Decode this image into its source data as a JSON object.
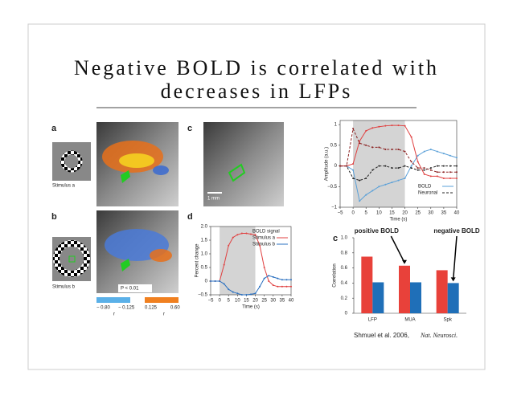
{
  "title": "Negative BOLD is correlated with decreases in LFPs",
  "panel_labels": [
    "a",
    "b",
    "c",
    "d",
    "c"
  ],
  "stimulus_labels": [
    "Stimulus a",
    "Stimulus b"
  ],
  "scale_bar": "1 mm",
  "p_value": "P < 0.01",
  "colorbar": {
    "labels": [
      "− 0.80",
      "− 0.125",
      "0.125",
      "0.60"
    ],
    "unit_labels": [
      "r",
      "r"
    ]
  },
  "chart_c": {
    "type": "line",
    "xlabel": "Time (s)",
    "ylabel": "Amplitude (a.u.)",
    "x": [
      -5,
      -2.5,
      0,
      2.5,
      5,
      7.5,
      10,
      12.5,
      15,
      17.5,
      20,
      22.5,
      25,
      27.5,
      30,
      32.5,
      35,
      37.5,
      40
    ],
    "xlim": [
      -5,
      40
    ],
    "xticks": [
      {
        "value": -5,
        "label": "−5"
      },
      0,
      5,
      10,
      15,
      20,
      25,
      30,
      35,
      40
    ],
    "ylim": [
      -1,
      1.1
    ],
    "yticks": [
      {
        "value": -1,
        "label": "−1"
      },
      {
        "value": -0.5,
        "label": "−0.5"
      },
      0,
      0.5,
      1
    ],
    "span": [
      0,
      20
    ],
    "legend": "lower right",
    "series": [
      {
        "name": "BOLD",
        "color": "#5aa0d8",
        "values": [
          0,
          0,
          -0.1,
          -0.85,
          -0.7,
          -0.6,
          -0.5,
          -0.45,
          -0.4,
          -0.35,
          -0.3,
          0.0,
          0.25,
          0.35,
          0.4,
          0.35,
          0.3,
          0.25,
          0.2
        ]
      },
      {
        "name": "Neuronal",
        "color": "#222222",
        "dashed": true,
        "values": [
          0,
          0,
          -0.3,
          -0.35,
          -0.3,
          -0.1,
          0,
          0,
          -0.05,
          -0.05,
          0,
          -0.05,
          -0.1,
          -0.1,
          -0.05,
          0,
          0,
          0,
          0
        ]
      },
      {
        "color": "#e04040",
        "values": [
          0,
          0,
          0.05,
          0.6,
          0.85,
          0.92,
          0.95,
          0.97,
          0.98,
          0.98,
          0.97,
          0.7,
          0.1,
          -0.2,
          -0.25,
          -0.25,
          -0.3,
          -0.3,
          -0.3
        ]
      },
      {
        "color": "#8a2020",
        "dashed": true,
        "values": [
          0,
          0,
          0.9,
          0.55,
          0.5,
          0.45,
          0.45,
          0.4,
          0.4,
          0.4,
          0.35,
          0.1,
          -0.05,
          -0.05,
          -0.1,
          -0.15,
          -0.15,
          -0.15,
          -0.15
        ]
      }
    ]
  },
  "chart_d": {
    "type": "line",
    "xlabel": "Time (s)",
    "ylabel": "Percent change",
    "x": [
      -5,
      -2.5,
      0,
      2.5,
      5,
      7.5,
      10,
      12.5,
      15,
      17.5,
      20,
      22.5,
      25,
      27.5,
      30,
      32.5,
      35,
      37.5,
      40
    ],
    "xlim": [
      -5,
      40
    ],
    "xticks": [
      {
        "value": -5,
        "label": "−5"
      },
      0,
      5,
      10,
      15,
      20,
      25,
      30,
      35,
      40
    ],
    "ylim": [
      -0.5,
      2.0
    ],
    "yticks": [
      {
        "value": -0.5,
        "label": "−0.5"
      },
      0,
      0.5,
      {
        "value": 1,
        "label": "1.0"
      },
      1.5,
      {
        "value": 2,
        "label": "2.0"
      }
    ],
    "span": [
      0,
      20
    ],
    "legend": "upper right",
    "legend_title": "BOLD signal",
    "series": [
      {
        "name": "Stimulus a",
        "color": "#e04040",
        "values": [
          0,
          0,
          0,
          0.6,
          1.3,
          1.6,
          1.7,
          1.75,
          1.75,
          1.72,
          1.7,
          1.3,
          0.5,
          0,
          -0.15,
          -0.2,
          -0.2,
          -0.2,
          -0.2
        ]
      },
      {
        "name": "Stimulus b",
        "color": "#2a70c0",
        "values": [
          0,
          0,
          0,
          -0.1,
          -0.3,
          -0.4,
          -0.45,
          -0.5,
          -0.5,
          -0.48,
          -0.45,
          -0.2,
          0.1,
          0.2,
          0.15,
          0.1,
          0.05,
          0.05,
          0.05
        ]
      }
    ]
  },
  "chart_bar": {
    "type": "bar",
    "ylabel": "Correlation",
    "categories": [
      "LFP",
      "MUA",
      "Spk"
    ],
    "ylim": [
      0,
      1
    ],
    "yticks": [
      0,
      0.2,
      0.4,
      0.6,
      0.8,
      {
        "value": 1,
        "label": "1.0"
      }
    ],
    "annotations": [
      "positive BOLD",
      "negative BOLD"
    ],
    "series": [
      {
        "color": "#e8413a",
        "values": [
          0.75,
          0.63,
          0.57
        ]
      },
      {
        "color": "#1f6fb8",
        "values": [
          0.41,
          0.41,
          0.4
        ]
      }
    ]
  },
  "citation": {
    "authors": "Shmuel et al. 2006, ",
    "journal": "Nat. Neurosci."
  }
}
